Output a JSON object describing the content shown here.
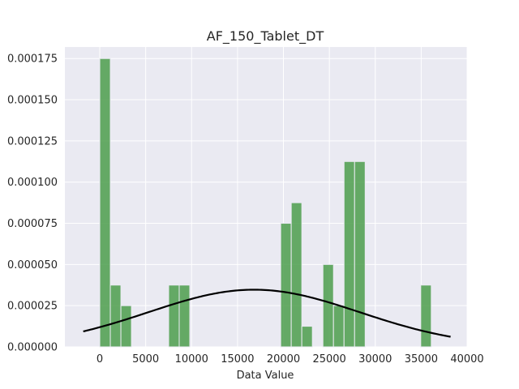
{
  "chart_data": {
    "type": "bar",
    "subtype": "histogram-with-density-curve",
    "title": "AF_150_Tablet_DT",
    "xlabel": "Data Value",
    "ylabel": "",
    "xlim": [
      -3800,
      40000
    ],
    "ylim": [
      0,
      0.000182
    ],
    "xticks": [
      0,
      5000,
      10000,
      15000,
      20000,
      25000,
      30000,
      35000,
      40000
    ],
    "xtick_labels": [
      "0",
      "5000",
      "10000",
      "15000",
      "20000",
      "25000",
      "30000",
      "35000",
      "40000"
    ],
    "yticks": [
      0,
      2.5e-05,
      5e-05,
      7.5e-05,
      0.0001,
      0.000125,
      0.00015,
      0.000175
    ],
    "ytick_labels": [
      "0.000000",
      "0.000025",
      "0.000050",
      "0.000075",
      "0.000100",
      "0.000125",
      "0.000150",
      "0.000175"
    ],
    "grid": true,
    "bin_width": 1150,
    "bins": [
      {
        "x0": 0,
        "value": 0.000175
      },
      {
        "x0": 1150,
        "value": 3.75e-05
      },
      {
        "x0": 2300,
        "value": 2.5e-05
      },
      {
        "x0": 7500,
        "value": 3.75e-05
      },
      {
        "x0": 8650,
        "value": 3.75e-05
      },
      {
        "x0": 19700,
        "value": 7.5e-05
      },
      {
        "x0": 20850,
        "value": 8.75e-05
      },
      {
        "x0": 22000,
        "value": 1.25e-05
      },
      {
        "x0": 24300,
        "value": 5e-05
      },
      {
        "x0": 25450,
        "value": 2.5e-05
      },
      {
        "x0": 26600,
        "value": 0.0001125
      },
      {
        "x0": 27750,
        "value": 0.0001125
      },
      {
        "x0": 34950,
        "value": 3.75e-05
      }
    ],
    "density_curve": {
      "mean": 16800,
      "std": 11500,
      "x_range": [
        -1800,
        38200
      ]
    },
    "colors": {
      "bar": "#4c9e4c",
      "curve": "#000000",
      "plot_background": "#eaeaf2",
      "grid": "#ffffff"
    }
  }
}
